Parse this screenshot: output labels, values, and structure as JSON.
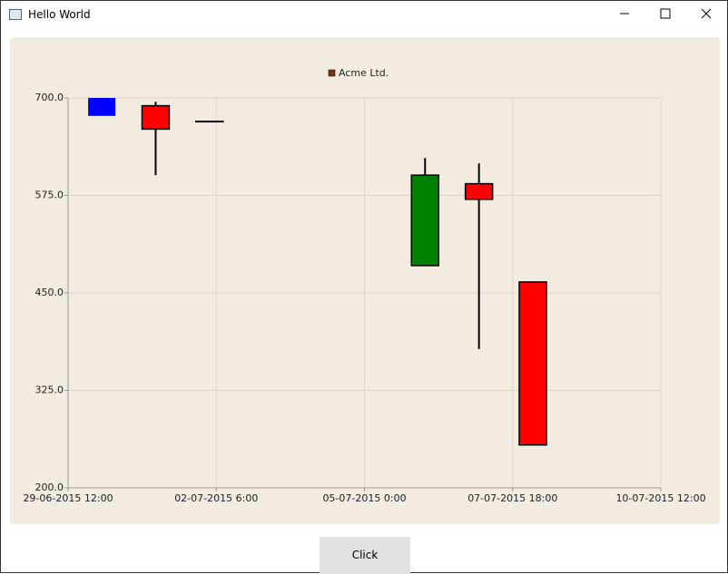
{
  "window": {
    "title": "Hello World"
  },
  "button": {
    "label": "Click"
  },
  "chart_data": {
    "type": "candlestick",
    "x": [
      "2015-06-30T03:00",
      "2015-07-01T03:00",
      "2015-07-02T03:00",
      "2015-07-06T03:00",
      "2015-07-07T03:00",
      "2015-07-08T03:00"
    ],
    "series": [
      {
        "name": "Acme Ltd.",
        "color": "#7a3410",
        "open": [
          677,
          690,
          670,
          485,
          590,
          464
        ],
        "high": [
          700,
          695,
          670,
          623,
          616,
          464
        ],
        "low": [
          677,
          601,
          670,
          485,
          378,
          255
        ],
        "close": [
          700,
          660,
          670,
          601,
          570,
          255
        ],
        "body_colors": [
          "#0000ff",
          "#ff0000",
          "#000000",
          "#008000",
          "#ff0000",
          "#ff0000"
        ]
      }
    ],
    "xlim": [
      "2015-06-29T12:00",
      "2015-07-10T12:00"
    ],
    "xticks": [
      {
        "value": "2015-06-29T12:00",
        "label": "29-06-2015 12:00"
      },
      {
        "value": "2015-07-02T06:00",
        "label": "02-07-2015 6:00"
      },
      {
        "value": "2015-07-05T00:00",
        "label": "05-07-2015 0:00"
      },
      {
        "value": "2015-07-07T18:00",
        "label": "07-07-2015 18:00"
      },
      {
        "value": "2015-07-10T12:00",
        "label": "10-07-2015 12:00"
      }
    ],
    "ylim": [
      200,
      700
    ],
    "yticks": [
      {
        "value": 200,
        "label": "200.0"
      },
      {
        "value": 325,
        "label": "325.0"
      },
      {
        "value": 450,
        "label": "450.0"
      },
      {
        "value": 575,
        "label": "575.0"
      },
      {
        "value": 700,
        "label": "700.0"
      }
    ],
    "grid": true,
    "legend": "top"
  }
}
